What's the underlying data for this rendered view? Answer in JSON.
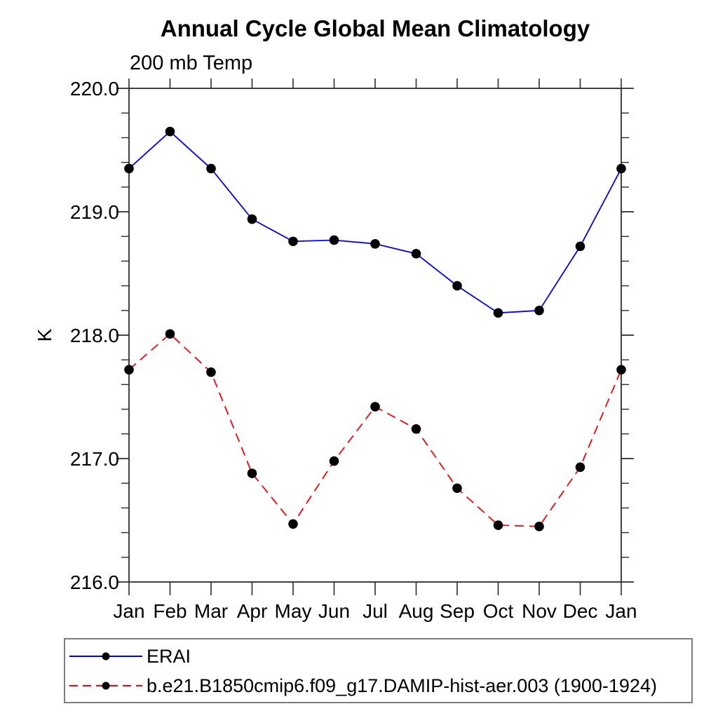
{
  "chart_data": {
    "type": "line",
    "title": "Annual Cycle Global Mean Climatology",
    "subtitle": "200 mb Temp",
    "ylabel": "K",
    "xlabel": "",
    "categories": [
      "Jan",
      "Feb",
      "Mar",
      "Apr",
      "May",
      "Jun",
      "Jul",
      "Aug",
      "Sep",
      "Oct",
      "Nov",
      "Dec",
      "Jan"
    ],
    "ylim": [
      216.0,
      220.0
    ],
    "ytick_interval": 1.0,
    "yminor_interval": 0.2,
    "ytick_labels": [
      "220.0",
      "219.0",
      "218.0",
      "217.0",
      "216.0"
    ],
    "grid": false,
    "legend_position": "bottom-left",
    "marker": {
      "shape": "filled-circle",
      "color": "#000000"
    },
    "series": [
      {
        "name": "ERAI",
        "color": "#0000ff",
        "style": "solid",
        "values": [
          219.35,
          219.65,
          219.35,
          218.94,
          218.76,
          218.77,
          218.74,
          218.66,
          218.4,
          218.18,
          218.2,
          218.72,
          219.35
        ]
      },
      {
        "name": "b.e21.B1850cmip6.f09_g17.DAMIP-hist-aer.003 (1900-1924)",
        "color": "#ff0000",
        "style": "dashed",
        "values": [
          217.72,
          218.01,
          217.7,
          216.88,
          216.47,
          216.98,
          217.42,
          217.24,
          216.76,
          216.46,
          216.45,
          216.93,
          217.72
        ]
      }
    ]
  }
}
